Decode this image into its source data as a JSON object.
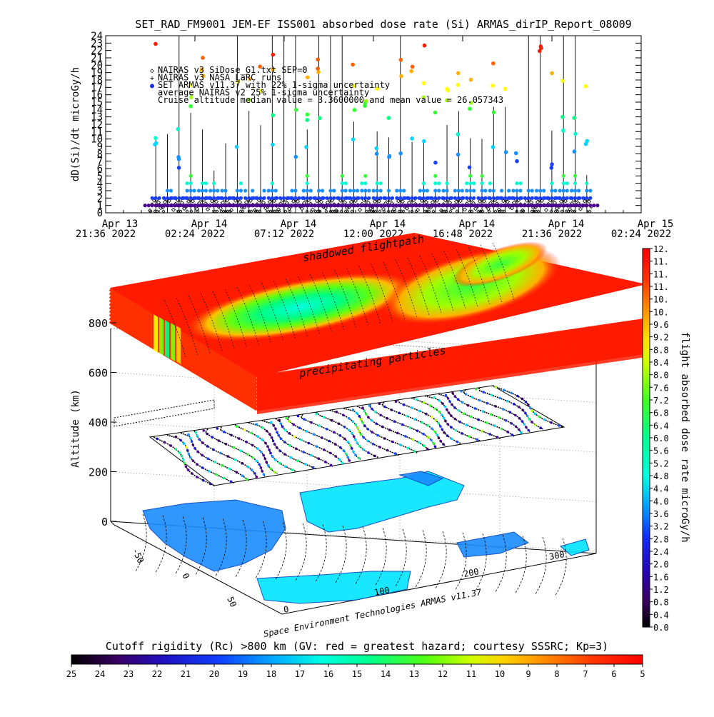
{
  "title": "SET_RAD_FM9001  JEM-EF ISS001 absorbed dose rate (Si) ARMAS_dirIP_Report_08009",
  "chart_data": [
    {
      "type": "scatter",
      "ylabel": "dD(Si)/dt microGy/h",
      "ylim": [
        0,
        24
      ],
      "y_ticks": [
        "0",
        "1",
        "2",
        "3",
        "4",
        "5",
        "6",
        "7",
        "8",
        "9",
        "10",
        "11",
        "12",
        "13",
        "14",
        "15",
        "16",
        "17",
        "18",
        "19",
        "20",
        "21",
        "22",
        "23",
        "24"
      ],
      "x_ticks": [
        {
          "day": "Apr 13",
          "time": "21:36",
          "year": "2022"
        },
        {
          "day": "Apr 14",
          "time": "02:24",
          "year": "2022"
        },
        {
          "day": "Apr 14",
          "time": "07:12",
          "year": "2022"
        },
        {
          "day": "Apr 14",
          "time": "12:00",
          "year": "2022"
        },
        {
          "day": "Apr 14",
          "time": "16:48",
          "year": "2022"
        },
        {
          "day": "Apr 14",
          "time": "21:36",
          "year": "2022"
        },
        {
          "day": "Apr 15",
          "time": "02:24",
          "year": "2022"
        }
      ],
      "legend": [
        {
          "symbol": "◇",
          "label": "NAIRAS v3 SiDose_G1.txt SEP=0"
        },
        {
          "symbol": "+",
          "label": "NAIRAS v3 NASA LaRC runs"
        },
        {
          "symbol": "●",
          "label": "SET ARMAS v11.37 with 22% 1-sigma uncertainty",
          "color": "#1530e0"
        },
        {
          "symbol": "",
          "label": "average NAIRAS v2 25% 1-sigma uncertainty"
        },
        {
          "symbol": "",
          "label": "Cruise altitude median value = 3.3600000 and mean value = 26.057343"
        }
      ],
      "series": [
        {
          "kind": "armas-dose-points",
          "passes": 38,
          "baseline_microGy_h": [
            1,
            4
          ],
          "peak_microGy_h": [
            5,
            24
          ]
        },
        {
          "kind": "nairas-model",
          "values_microGy_h": [
            0,
            2
          ]
        }
      ]
    },
    {
      "type": "3d-trajectory",
      "zlabel": "Altitude (km)",
      "z_ticks": [
        "0",
        "200",
        "400",
        "600",
        "800"
      ],
      "zlim": [
        0,
        900
      ],
      "lon_ticks": [
        "0",
        "100",
        "200",
        "300"
      ],
      "lat_ticks": [
        "-50",
        "0",
        "50"
      ],
      "annotations": [
        "shadowed flightpath",
        "precipitating particles"
      ],
      "orbit_altitude_km": 420,
      "cutoff_layer_altitude_km": 850
    },
    {
      "type": "colorbar",
      "label": "flight absorbed dose rate microGy/h",
      "ticks": [
        "0.0",
        "0.4",
        "0.8",
        "1.2",
        "1.6",
        "2.0",
        "2.4",
        "2.8",
        "3.2",
        "3.6",
        "4.0",
        "4.4",
        "4.8",
        "5.2",
        "5.6",
        "6.0",
        "6.4",
        "6.8",
        "7.2",
        "7.6",
        "8.0",
        "8.4",
        "8.8",
        "9.2",
        "9.6",
        "10.",
        "10.",
        "11.",
        "11.",
        "11.",
        "12."
      ],
      "range": [
        0,
        12
      ]
    },
    {
      "type": "colorbar",
      "label": "Cutoff rigidity (Rc) >800 km (GV: red = greatest hazard; courtesy SSSRC; Kp=3)",
      "ticks": [
        "25",
        "24",
        "23",
        "22",
        "21",
        "20",
        "19",
        "18",
        "17",
        "16",
        "15",
        "14",
        "13",
        "12",
        "11",
        "10",
        "9",
        "8",
        "7",
        "6",
        "5"
      ],
      "range": [
        25,
        5
      ]
    }
  ],
  "credit": "Space Environment Technologies ARMAS v11.37",
  "colors": {
    "rainbow": [
      "#000000",
      "#3a0063",
      "#4b0090",
      "#1a10d0",
      "#1a40ff",
      "#1a90ff",
      "#00d5ff",
      "#00ffd0",
      "#00ff80",
      "#30ff30",
      "#a0ff00",
      "#ffff00",
      "#ffb000",
      "#ff6000",
      "#ff1a00"
    ]
  }
}
